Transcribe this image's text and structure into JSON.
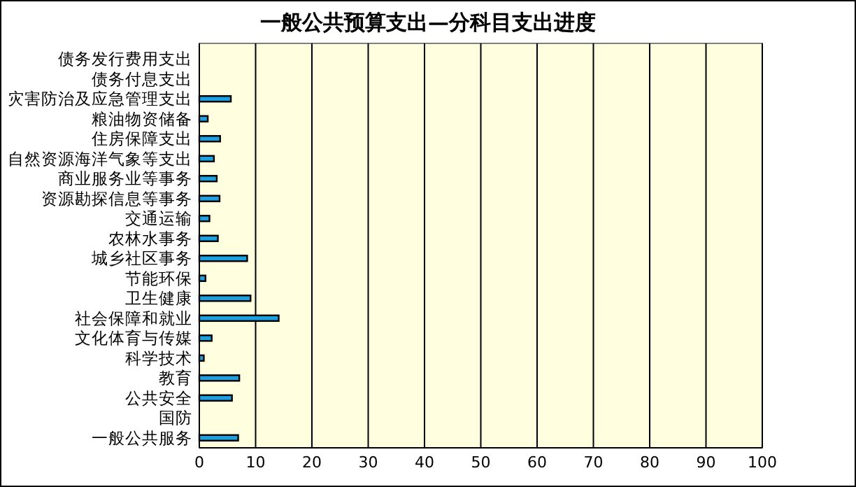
{
  "chart_data": {
    "type": "bar",
    "orientation": "horizontal",
    "title": "一般公共预算支出—分科目支出进度",
    "categories": [
      "债务发行费用支出",
      "债务付息支出",
      "灾害防治及应急管理支出",
      "粮油物资储备",
      "住房保障支出",
      "自然资源海洋气象等支出",
      "商业服务业等事务",
      "资源勘探信息等事务",
      "交通运输",
      "农林水事务",
      "城乡社区事务",
      "节能环保",
      "卫生健康",
      "社会保障和就业",
      "文化体育与传媒",
      "科学技术",
      "教育",
      "公共安全",
      "国防",
      "一般公共服务"
    ],
    "values": [
      0,
      0,
      5.6,
      1.5,
      3.7,
      2.6,
      3.1,
      3.6,
      1.8,
      3.3,
      8.5,
      1.1,
      9.1,
      14.1,
      2.2,
      0.8,
      7.1,
      5.8,
      0,
      6.9
    ],
    "color": "#1ba1e2",
    "xlim": [
      0,
      100
    ],
    "xticks": [
      0,
      10,
      20,
      30,
      40,
      50,
      60,
      70,
      80,
      90,
      100
    ],
    "grid": "x"
  }
}
